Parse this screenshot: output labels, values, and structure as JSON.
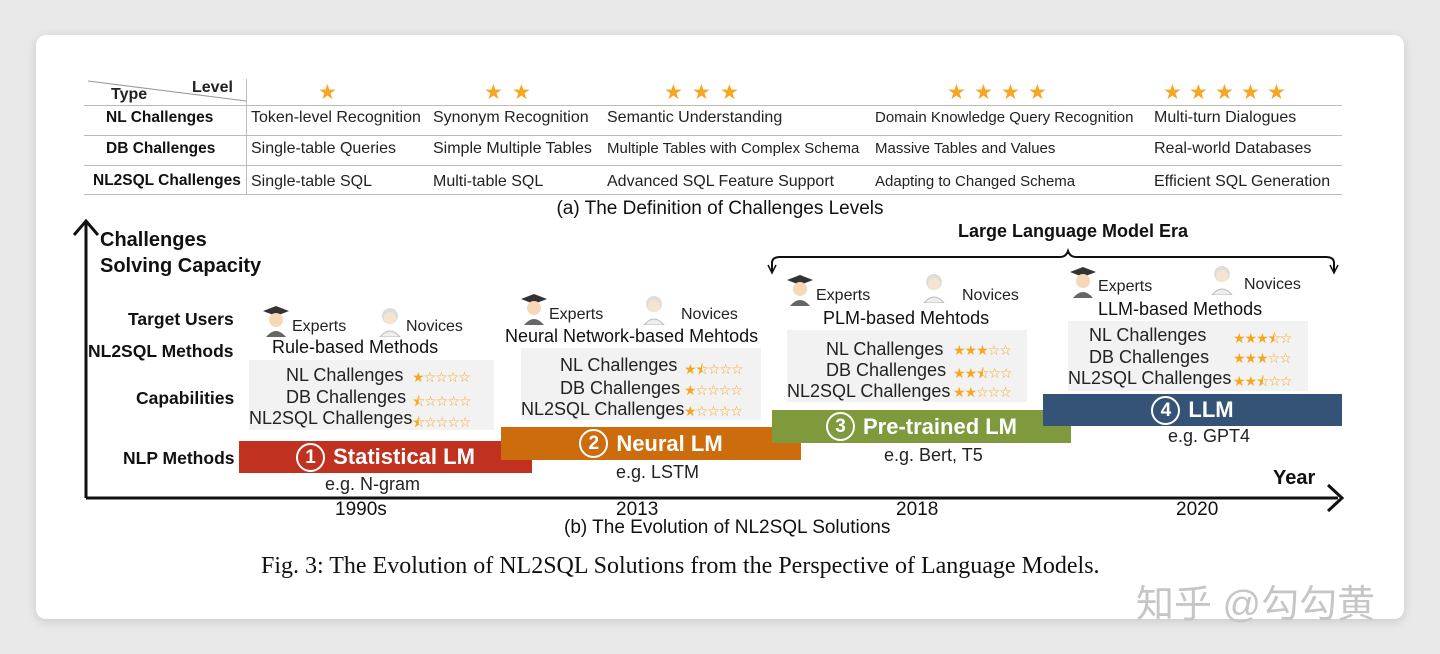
{
  "part_a": {
    "header_type": "Type",
    "header_level": "Level",
    "rows": [
      {
        "label": "NL Challenges",
        "cells": [
          "Token-level Recognition",
          "Synonym Recognition",
          "Semantic Understanding",
          "Domain Knowledge Query Recognition",
          "Multi-turn Dialogues"
        ]
      },
      {
        "label": "DB Challenges",
        "cells": [
          "Single-table Queries",
          "Simple Multiple Tables",
          "Multiple Tables with Complex Schema",
          "Massive Tables and Values",
          "Real-world Databases"
        ]
      },
      {
        "label": "NL2SQL Challenges",
        "cells": [
          "Single-table SQL",
          "Multi-table SQL",
          "Advanced SQL Feature Support",
          "Adapting to Changed Schema",
          "Efficient SQL Generation"
        ]
      }
    ],
    "level_stars": [
      1,
      2,
      3,
      4,
      5
    ],
    "caption": "(a) The Definition of Challenges Levels"
  },
  "part_b": {
    "y_axis_title_1": "Challenges",
    "y_axis_title_2": "Solving Capacity",
    "x_axis_title": "Year",
    "row_labels": [
      "Target Users",
      "NL2SQL Methods",
      "Capabilities",
      "NLP Methods"
    ],
    "llm_era_label": "Large Language Model Era",
    "experts_label": "Experts",
    "novices_label": "Novices",
    "capability_labels": [
      "NL Challenges",
      "DB Challenges",
      "NL2SQL Challenges"
    ],
    "eras": [
      {
        "num": "1",
        "name": "Statistical LM",
        "example": "e.g. N-gram",
        "year": "1990s",
        "method": "Rule-based Methods",
        "color": "#c0311f",
        "ratings": [
          1,
          1,
          1
        ]
      },
      {
        "num": "2",
        "name": "Neural LM",
        "example": "e.g. LSTM",
        "year": "2013",
        "method": "Neural Network-based Mehtods",
        "color": "#cc6c0c",
        "ratings": [
          2.5,
          1.5,
          1.5
        ]
      },
      {
        "num": "3",
        "name": "Pre-trained LM",
        "example": "e.g. Bert, T5",
        "year": "2018",
        "method": "PLM-based Mehtods",
        "color": "#7f9a3d",
        "ratings": [
          3,
          2.5,
          2
        ]
      },
      {
        "num": "4",
        "name": "LLM",
        "example": "e.g. GPT4",
        "year": "2020",
        "method": "LLM-based Methods",
        "color": "#355377",
        "ratings": [
          3.5,
          3,
          2.5
        ]
      }
    ],
    "caption": "(b) The Evolution of NL2SQL Solutions"
  },
  "figure_caption": "Fig. 3: The Evolution of NL2SQL Solutions from the Perspective of Language Models.",
  "watermark": "知乎 @勾勾黄",
  "colors": {
    "star": "#f5a623",
    "era1": "#c0311f",
    "era2": "#cc6c0c",
    "era3": "#7f9a3d",
    "era4": "#355377"
  }
}
